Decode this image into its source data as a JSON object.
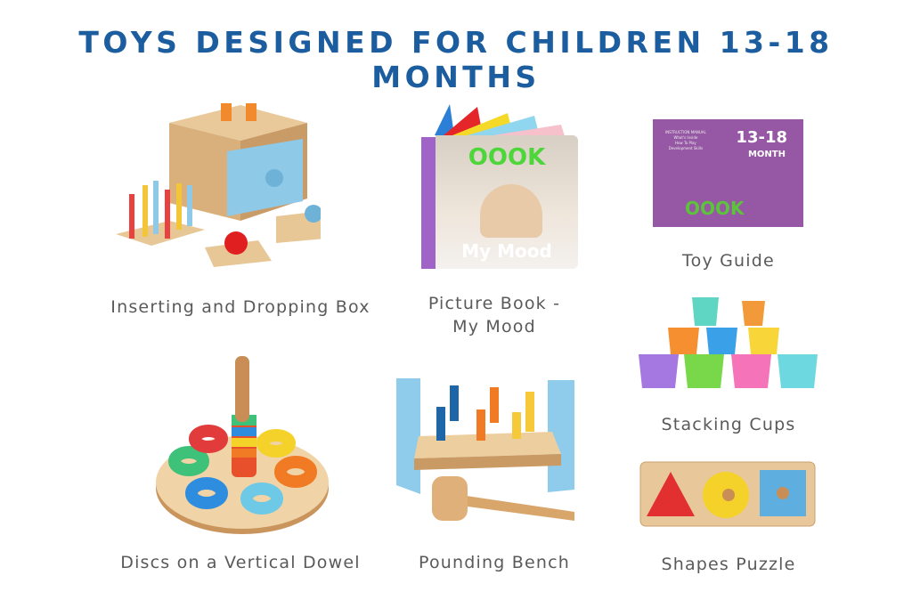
{
  "title": "TOYS DESIGNED FOR CHILDREN 13-18 MONTHS",
  "colors": {
    "title": "#1b5d9e",
    "caption": "#5a5a5a"
  },
  "toys": [
    {
      "caption": "Inserting and Dropping Box"
    },
    {
      "caption_line1": "Picture Book -",
      "caption_line2": "My Mood",
      "book_brand": "OOOK",
      "book_title": "My Mood"
    },
    {
      "caption": "Toy Guide",
      "guide_heading": "13-18",
      "guide_sub": "MONTH",
      "guide_brand": "OOOK",
      "guide_menu": [
        "INSTRUCTION MANUAL",
        "What's Inside",
        "How To Play",
        "Development Skills"
      ]
    },
    {
      "caption": "Stacking Cups"
    },
    {
      "caption": "Discs on a Vertical Dowel"
    },
    {
      "caption": "Pounding Bench"
    },
    {
      "caption": "Shapes Puzzle"
    }
  ]
}
